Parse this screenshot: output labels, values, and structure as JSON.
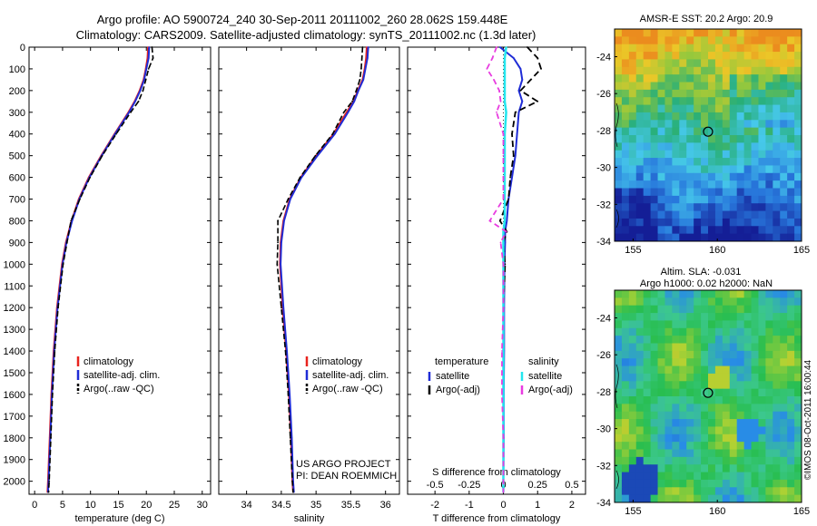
{
  "header": {
    "line1": "Argo profile: AO 5900724_240 30-Sep-2011 20111002_260 28.062S 159.448E",
    "line2": "Climatology: CARS2009. Satellite-adjusted climatology: synTS_20111002.nc (1.3d later)"
  },
  "depth_axis": {
    "ticks": [
      0,
      100,
      200,
      300,
      400,
      500,
      600,
      700,
      800,
      900,
      1000,
      1100,
      1200,
      1300,
      1400,
      1500,
      1600,
      1700,
      1800,
      1900,
      2000
    ],
    "range": [
      0,
      2060
    ]
  },
  "series_colors": {
    "climatology": "#e8231e",
    "satellite": "#1f2cd6",
    "argo": "#000000",
    "s_satellite": "#22e6ee",
    "s_argo": "#e83ce0"
  },
  "panel_text": {
    "temperature": {
      "xlabel": "temperature (deg C)",
      "legend": [
        "climatology",
        "satellite-adj. clim.",
        "Argo(..raw -QC)"
      ]
    },
    "salinity": {
      "xlabel": "salinity",
      "legend": [
        "climatology",
        "satellite-adj. clim.",
        "Argo(..raw -QC)"
      ],
      "project": "US ARGO PROJECT",
      "pi": "PI: DEAN ROEMMICH"
    },
    "difference": {
      "xlabel": "T difference from climatology",
      "top_label": "S difference from climatology",
      "legend_t_title": "temperature",
      "legend_s_title": "salinity",
      "legend_t": [
        "satellite",
        "Argo(-adj)"
      ],
      "legend_s": [
        "satellite",
        "Argo(-adj)"
      ]
    }
  },
  "maps": {
    "sst_title": "AMSR-E SST: 20.2  Argo: 20.9",
    "sla_title1": "Altim. SLA: -0.031",
    "sla_title2": "Argo h1000: 0.02 h2000: NaN",
    "lat_ticks": [
      "-24",
      "-26",
      "-28",
      "-30",
      "-32",
      "-34"
    ],
    "lon_ticks": [
      "155",
      "160",
      "165"
    ],
    "lat_range": [
      -34,
      -22.5
    ],
    "lon_range": [
      153.9,
      165
    ],
    "argo_location": {
      "lat": -28.062,
      "lon": 159.448
    },
    "credit": "©IMOS 08-Oct-2011 16:00:44"
  },
  "chart_data": [
    {
      "type": "line",
      "title": "",
      "xlabel": "temperature (deg C)",
      "ylabel": "",
      "xlim": [
        -1,
        31.5
      ],
      "ylim": [
        2060,
        0
      ],
      "xticks": [
        0,
        5,
        10,
        15,
        20,
        25,
        30
      ],
      "depth": [
        0,
        50,
        100,
        150,
        200,
        250,
        300,
        400,
        500,
        600,
        700,
        800,
        900,
        1000,
        1200,
        1400,
        1600,
        1800,
        2000,
        2050
      ],
      "series": [
        {
          "name": "climatology",
          "values": [
            20.3,
            20.2,
            19.9,
            19.5,
            18.8,
            17.9,
            16.8,
            14.3,
            11.9,
            9.7,
            7.9,
            6.6,
            5.6,
            4.9,
            4.0,
            3.4,
            3.0,
            2.7,
            2.4,
            2.3
          ]
        },
        {
          "name": "satellite-adj. clim.",
          "values": [
            20.5,
            20.4,
            20.0,
            19.6,
            18.9,
            18.0,
            16.9,
            14.4,
            12.0,
            9.8,
            8.0,
            6.7,
            5.7,
            5.0,
            4.1,
            3.5,
            3.1,
            2.8,
            2.5,
            2.4
          ]
        },
        {
          "name": "Argo(..raw -QC)",
          "values": [
            21.0,
            21.2,
            20.4,
            19.9,
            19.4,
            18.6,
            17.2,
            14.6,
            12.1,
            9.9,
            8.1,
            6.5,
            5.8,
            5.1,
            4.2,
            3.6,
            3.2,
            2.9,
            2.6,
            2.5
          ]
        }
      ]
    },
    {
      "type": "line",
      "title": "",
      "xlabel": "salinity",
      "ylabel": "",
      "xlim": [
        33.6,
        36.2
      ],
      "ylim": [
        2060,
        0
      ],
      "xticks": [
        34,
        34.5,
        35,
        35.5,
        36
      ],
      "depth": [
        0,
        50,
        100,
        150,
        200,
        250,
        300,
        400,
        500,
        600,
        700,
        800,
        900,
        1000,
        1200,
        1400,
        1600,
        1800,
        2000,
        2050
      ],
      "series": [
        {
          "name": "climatology",
          "values": [
            35.73,
            35.72,
            35.7,
            35.67,
            35.6,
            35.54,
            35.44,
            35.25,
            35.0,
            34.78,
            34.62,
            34.53,
            34.49,
            34.48,
            34.52,
            34.57,
            34.61,
            34.64,
            34.66,
            34.67
          ]
        },
        {
          "name": "satellite-adj. clim.",
          "values": [
            35.75,
            35.74,
            35.71,
            35.68,
            35.61,
            35.55,
            35.46,
            35.27,
            35.02,
            34.79,
            34.63,
            34.54,
            34.5,
            34.49,
            34.53,
            34.58,
            34.62,
            34.65,
            34.67,
            34.68
          ]
        },
        {
          "name": "Argo(..raw -QC)",
          "values": [
            35.67,
            35.66,
            35.65,
            35.63,
            35.58,
            35.52,
            35.4,
            35.24,
            34.99,
            34.77,
            34.6,
            34.45,
            34.45,
            34.44,
            34.5,
            34.56,
            34.6,
            34.63,
            34.66,
            34.67
          ]
        }
      ]
    },
    {
      "type": "line",
      "title": "",
      "xlabel": "T difference from climatology",
      "ylabel": "",
      "xlim": [
        -2.8,
        2.4
      ],
      "ylim": [
        2060,
        0
      ],
      "xticks": [
        -2,
        -1,
        0,
        1,
        2
      ],
      "x2label": "S difference from climatology",
      "x2ticks": [
        -0.5,
        -0.25,
        0,
        0.25,
        0.5
      ],
      "depth": [
        0,
        50,
        100,
        150,
        200,
        250,
        300,
        400,
        500,
        600,
        700,
        800,
        850,
        900,
        1000,
        1200,
        1400,
        1600,
        1800,
        2000,
        2050
      ],
      "series": [
        {
          "name": "T satellite",
          "values": [
            -0.1,
            0.3,
            0.5,
            0.55,
            0.45,
            0.55,
            0.45,
            0.4,
            0.35,
            0.25,
            0.15,
            0.1,
            0.05,
            0.05,
            0.03,
            0.02,
            0.02,
            0.01,
            0.01,
            0.0,
            0.0
          ]
        },
        {
          "name": "T Argo(-adj)",
          "values": [
            0.7,
            1.0,
            1.1,
            0.8,
            0.5,
            1.0,
            0.35,
            0.25,
            0.3,
            0.2,
            0.15,
            -0.1,
            0.1,
            0.0,
            0.05,
            0.0,
            0.0,
            0.0,
            0.0,
            0.0,
            0.0
          ]
        },
        {
          "name": "S satellite",
          "values": [
            0.02,
            0.01,
            0.01,
            0.01,
            0.01,
            0.01,
            0.02,
            0.01,
            0.01,
            0.01,
            0.01,
            0.01,
            0.0,
            0.0,
            0.0,
            0.0,
            0.0,
            0.0,
            0.0,
            0.0,
            0.0
          ]
        },
        {
          "name": "S Argo(-adj)",
          "values": [
            -0.05,
            -0.08,
            -0.12,
            -0.07,
            -0.03,
            -0.02,
            -0.05,
            0.0,
            0.0,
            0.0,
            0.0,
            -0.1,
            0.02,
            -0.02,
            0.0,
            0.0,
            -0.01,
            -0.01,
            0.0,
            0.0,
            0.0
          ]
        }
      ]
    }
  ]
}
